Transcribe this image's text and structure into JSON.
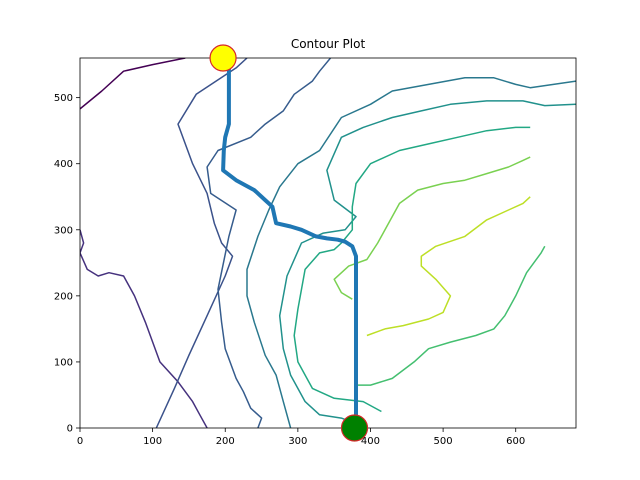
{
  "chart_data": {
    "type": "contour",
    "title": "Contour Plot",
    "xlabel": "",
    "ylabel": "",
    "xlim": [
      0,
      683
    ],
    "ylim": [
      0,
      560
    ],
    "xticks": [
      0,
      100,
      200,
      300,
      400,
      500,
      600
    ],
    "yticks": [
      0,
      100,
      200,
      300,
      400,
      500
    ],
    "grid": false,
    "contours": [
      {
        "color": "#440154",
        "points": [
          [
            0,
            483
          ],
          [
            30,
            510
          ],
          [
            60,
            540
          ],
          [
            100,
            550
          ],
          [
            145,
            560
          ]
        ]
      },
      {
        "color": "#46327e",
        "points": [
          [
            0,
            300
          ],
          [
            5,
            280
          ],
          [
            0,
            265
          ],
          [
            10,
            240
          ],
          [
            25,
            230
          ],
          [
            40,
            235
          ],
          [
            60,
            230
          ],
          [
            75,
            200
          ],
          [
            90,
            160
          ],
          [
            110,
            100
          ],
          [
            135,
            70
          ],
          [
            155,
            40
          ],
          [
            165,
            20
          ],
          [
            175,
            0
          ]
        ]
      },
      {
        "color": "#3b528b",
        "points": [
          [
            105,
            0
          ],
          [
            130,
            60
          ],
          [
            150,
            110
          ],
          [
            175,
            170
          ],
          [
            200,
            230
          ],
          [
            210,
            260
          ],
          [
            195,
            280
          ],
          [
            185,
            310
          ],
          [
            175,
            355
          ],
          [
            155,
            400
          ],
          [
            135,
            460
          ],
          [
            160,
            505
          ],
          [
            215,
            545
          ],
          [
            230,
            560
          ]
        ]
      },
      {
        "color": "#365c8d",
        "points": [
          [
            245,
            0
          ],
          [
            250,
            15
          ],
          [
            235,
            30
          ],
          [
            225,
            55
          ],
          [
            215,
            75
          ],
          [
            200,
            120
          ],
          [
            195,
            160
          ],
          [
            190,
            210
          ],
          [
            205,
            290
          ],
          [
            215,
            330
          ],
          [
            180,
            355
          ],
          [
            175,
            395
          ],
          [
            190,
            420
          ],
          [
            235,
            440
          ],
          [
            255,
            460
          ],
          [
            280,
            480
          ],
          [
            295,
            505
          ],
          [
            320,
            525
          ],
          [
            330,
            540
          ],
          [
            345,
            560
          ]
        ]
      },
      {
        "color": "#2a788e",
        "points": [
          [
            290,
            0
          ],
          [
            280,
            40
          ],
          [
            270,
            80
          ],
          [
            255,
            110
          ],
          [
            240,
            160
          ],
          [
            230,
            200
          ],
          [
            230,
            240
          ],
          [
            245,
            290
          ],
          [
            260,
            330
          ],
          [
            275,
            365
          ],
          [
            300,
            400
          ],
          [
            330,
            420
          ],
          [
            360,
            470
          ],
          [
            400,
            490
          ],
          [
            430,
            510
          ],
          [
            480,
            520
          ],
          [
            530,
            530
          ],
          [
            570,
            530
          ],
          [
            600,
            520
          ],
          [
            620,
            515
          ],
          [
            683,
            525
          ]
        ]
      },
      {
        "color": "#21918c",
        "points": [
          [
            395,
            0
          ],
          [
            360,
            15
          ],
          [
            330,
            20
          ],
          [
            310,
            40
          ],
          [
            290,
            80
          ],
          [
            280,
            120
          ],
          [
            275,
            170
          ],
          [
            285,
            230
          ],
          [
            305,
            280
          ],
          [
            335,
            295
          ],
          [
            365,
            300
          ],
          [
            380,
            320
          ],
          [
            350,
            345
          ],
          [
            340,
            390
          ],
          [
            360,
            440
          ],
          [
            390,
            455
          ],
          [
            430,
            470
          ],
          [
            470,
            480
          ],
          [
            510,
            490
          ],
          [
            560,
            495
          ],
          [
            610,
            495
          ],
          [
            640,
            488
          ],
          [
            683,
            490
          ]
        ]
      },
      {
        "color": "#22a884",
        "points": [
          [
            415,
            25
          ],
          [
            390,
            40
          ],
          [
            350,
            45
          ],
          [
            320,
            60
          ],
          [
            300,
            100
          ],
          [
            295,
            140
          ],
          [
            300,
            180
          ],
          [
            310,
            240
          ],
          [
            330,
            265
          ],
          [
            350,
            270
          ],
          [
            360,
            280
          ],
          [
            375,
            300
          ],
          [
            375,
            335
          ],
          [
            380,
            370
          ],
          [
            400,
            400
          ],
          [
            440,
            420
          ],
          [
            480,
            430
          ],
          [
            520,
            440
          ],
          [
            560,
            450
          ],
          [
            600,
            455
          ],
          [
            620,
            455
          ]
        ]
      },
      {
        "color": "#44bf70",
        "points": [
          [
            380,
            65
          ],
          [
            400,
            65
          ],
          [
            430,
            75
          ],
          [
            460,
            100
          ],
          [
            480,
            120
          ],
          [
            510,
            130
          ],
          [
            545,
            140
          ],
          [
            570,
            150
          ],
          [
            585,
            170
          ],
          [
            600,
            200
          ],
          [
            615,
            235
          ],
          [
            635,
            265
          ],
          [
            640,
            275
          ]
        ]
      },
      {
        "color": "#7ad151",
        "points": [
          [
            375,
            195
          ],
          [
            360,
            205
          ],
          [
            350,
            225
          ],
          [
            370,
            245
          ],
          [
            395,
            255
          ],
          [
            410,
            280
          ],
          [
            420,
            300
          ],
          [
            440,
            340
          ],
          [
            465,
            360
          ],
          [
            500,
            370
          ],
          [
            530,
            375
          ],
          [
            560,
            385
          ],
          [
            590,
            395
          ],
          [
            610,
            405
          ],
          [
            620,
            410
          ]
        ]
      },
      {
        "color": "#bddf26",
        "points": [
          [
            395,
            140
          ],
          [
            420,
            150
          ],
          [
            445,
            155
          ],
          [
            480,
            165
          ],
          [
            500,
            175
          ],
          [
            510,
            200
          ],
          [
            490,
            225
          ],
          [
            470,
            245
          ],
          [
            470,
            260
          ],
          [
            490,
            275
          ],
          [
            530,
            290
          ],
          [
            560,
            315
          ],
          [
            590,
            330
          ],
          [
            610,
            340
          ],
          [
            620,
            350
          ]
        ]
      }
    ],
    "path": {
      "color": "#1f77b4",
      "points": [
        [
          205,
          560
        ],
        [
          205,
          460
        ],
        [
          200,
          440
        ],
        [
          198,
          420
        ],
        [
          197,
          390
        ],
        [
          215,
          375
        ],
        [
          240,
          360
        ],
        [
          255,
          345
        ],
        [
          265,
          335
        ],
        [
          268,
          320
        ],
        [
          270,
          310
        ],
        [
          290,
          305
        ],
        [
          305,
          300
        ],
        [
          325,
          290
        ],
        [
          340,
          287
        ],
        [
          355,
          285
        ],
        [
          365,
          282
        ],
        [
          375,
          275
        ],
        [
          380,
          260
        ],
        [
          380,
          220
        ],
        [
          380,
          170
        ],
        [
          380,
          120
        ],
        [
          380,
          80
        ],
        [
          380,
          50
        ],
        [
          380,
          30
        ],
        [
          380,
          0
        ]
      ]
    },
    "markers": [
      {
        "name": "start",
        "x": 197,
        "y": 560,
        "fill": "#ffff00",
        "edge": "#d62728"
      },
      {
        "name": "goal",
        "x": 378,
        "y": 0,
        "fill": "#008000",
        "edge": "#d62728"
      }
    ]
  }
}
